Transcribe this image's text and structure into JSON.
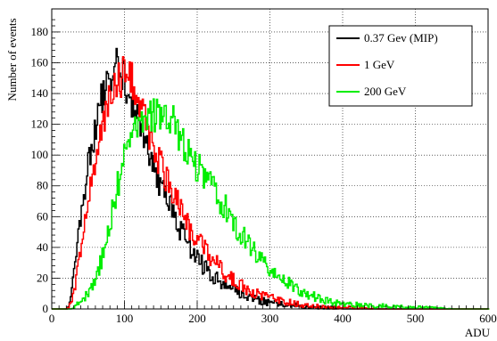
{
  "chart_data": {
    "type": "line",
    "title": "",
    "xlabel": "ADU",
    "ylabel": "Number of events",
    "xlim": [
      0,
      600
    ],
    "ylim": [
      0,
      195
    ],
    "xticks": [
      0,
      100,
      200,
      300,
      400,
      500,
      600
    ],
    "yticks": [
      0,
      20,
      40,
      60,
      80,
      100,
      120,
      140,
      160,
      180
    ],
    "xtick_labels": [
      "0",
      "100",
      "200",
      "300",
      "400",
      "500",
      "600"
    ],
    "ytick_labels": [
      "0",
      "20",
      "40",
      "60",
      "80",
      "100",
      "120",
      "140",
      "160",
      "180"
    ],
    "grid": true,
    "legend_position": "top-right",
    "x": [
      0,
      10,
      20,
      25,
      30,
      40,
      50,
      60,
      70,
      80,
      90,
      100,
      110,
      120,
      130,
      140,
      150,
      160,
      170,
      180,
      190,
      200,
      220,
      240,
      260,
      280,
      300,
      320,
      340,
      360,
      380,
      400,
      450,
      500,
      550,
      600
    ],
    "series": [
      {
        "name": "0.37 Gev (MIP)",
        "color": "#000000",
        "values": [
          0,
          0,
          0,
          5,
          25,
          60,
          95,
          120,
          140,
          150,
          160,
          150,
          135,
          120,
          105,
          92,
          80,
          70,
          58,
          48,
          40,
          32,
          22,
          15,
          10,
          6,
          4,
          3,
          2,
          1,
          1,
          0,
          0,
          0,
          0,
          0
        ]
      },
      {
        "name": "1 GeV",
        "color": "#ff0000",
        "values": [
          0,
          0,
          0,
          3,
          12,
          40,
          70,
          100,
          125,
          140,
          148,
          152,
          148,
          135,
          120,
          105,
          92,
          82,
          72,
          62,
          52,
          44,
          32,
          22,
          15,
          10,
          7,
          5,
          3,
          2,
          1,
          1,
          0,
          0,
          0,
          0
        ]
      },
      {
        "name": "200 GeV",
        "color": "#00ee00",
        "values": [
          0,
          0,
          0,
          0,
          2,
          5,
          10,
          20,
          35,
          58,
          80,
          100,
          110,
          118,
          122,
          125,
          128,
          125,
          118,
          108,
          100,
          92,
          80,
          64,
          48,
          36,
          26,
          18,
          12,
          8,
          5,
          3,
          2,
          1,
          0,
          0
        ]
      }
    ]
  }
}
